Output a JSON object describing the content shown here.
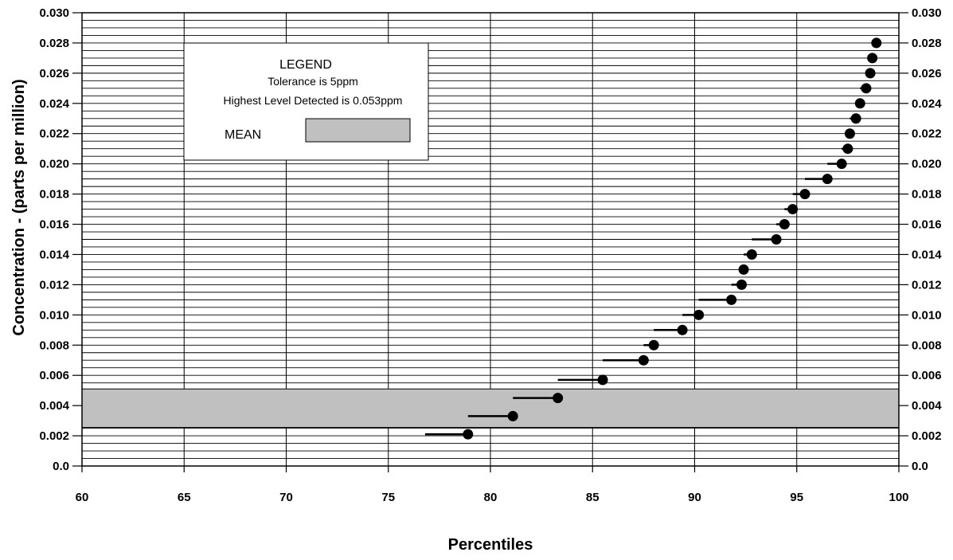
{
  "chart_data": {
    "type": "scatter",
    "title": "",
    "xlabel": "Percentiles",
    "ylabel": "Concentration - (parts per million)",
    "xlim": [
      60,
      100
    ],
    "ylim": [
      0,
      0.03
    ],
    "x_ticks": [
      60,
      65,
      70,
      75,
      80,
      85,
      90,
      95,
      100
    ],
    "x_tick_labels": [
      "60",
      "65",
      "70",
      "75",
      "80",
      "85",
      "90",
      "95",
      "100"
    ],
    "y_ticks": [
      0,
      0.002,
      0.004,
      0.006,
      0.008,
      0.01,
      0.012,
      0.014,
      0.016,
      0.018,
      0.02,
      0.022,
      0.024,
      0.026,
      0.028,
      0.03
    ],
    "y_tick_labels": [
      "0.0",
      "0.002",
      "0.004",
      "0.006",
      "0.008",
      "0.010",
      "0.012",
      "0.014",
      "0.016",
      "0.018",
      "0.020",
      "0.022",
      "0.024",
      "0.026",
      "0.028",
      "0.030"
    ],
    "y_minor_step": 0.0005,
    "grid": true,
    "mean_band": {
      "label": "MEAN",
      "y_from": 0.00255,
      "y_to": 0.0051,
      "color": "#c0c0c0"
    },
    "legend": {
      "placement": "top-left",
      "title": "LEGEND",
      "lines": [
        "Tolerance is 5ppm",
        "Highest Level Detected is 0.053ppm"
      ],
      "mean_label": "MEAN"
    },
    "points": [
      {
        "x": 78.9,
        "y": 0.0021,
        "x_from": 76.8
      },
      {
        "x": 81.1,
        "y": 0.0033,
        "x_from": 78.9
      },
      {
        "x": 83.3,
        "y": 0.0045,
        "x_from": 81.1
      },
      {
        "x": 85.5,
        "y": 0.0057,
        "x_from": 83.3
      },
      {
        "x": 87.5,
        "y": 0.007,
        "x_from": 85.5
      },
      {
        "x": 88.0,
        "y": 0.008,
        "x_from": 87.5
      },
      {
        "x": 89.4,
        "y": 0.009,
        "x_from": 88.0
      },
      {
        "x": 90.2,
        "y": 0.01,
        "x_from": 89.4
      },
      {
        "x": 91.8,
        "y": 0.011,
        "x_from": 90.2
      },
      {
        "x": 92.3,
        "y": 0.012,
        "x_from": 91.8
      },
      {
        "x": 92.4,
        "y": 0.013,
        "x_from": 92.3
      },
      {
        "x": 92.8,
        "y": 0.014,
        "x_from": 92.4
      },
      {
        "x": 94.0,
        "y": 0.015,
        "x_from": 92.8
      },
      {
        "x": 94.4,
        "y": 0.016,
        "x_from": 94.0
      },
      {
        "x": 94.8,
        "y": 0.017,
        "x_from": 94.4
      },
      {
        "x": 95.4,
        "y": 0.018,
        "x_from": 94.8
      },
      {
        "x": 96.5,
        "y": 0.019,
        "x_from": 95.4
      },
      {
        "x": 97.2,
        "y": 0.02,
        "x_from": 96.5
      },
      {
        "x": 97.5,
        "y": 0.021,
        "x_from": 97.2
      },
      {
        "x": 97.6,
        "y": 0.022,
        "x_from": 97.5
      },
      {
        "x": 97.9,
        "y": 0.023,
        "x_from": 97.6
      },
      {
        "x": 98.1,
        "y": 0.024,
        "x_from": 97.9
      },
      {
        "x": 98.4,
        "y": 0.025,
        "x_from": 98.1
      },
      {
        "x": 98.6,
        "y": 0.026,
        "x_from": 98.4
      },
      {
        "x": 98.7,
        "y": 0.027,
        "x_from": 98.6
      },
      {
        "x": 98.9,
        "y": 0.028,
        "x_from": 98.7
      }
    ]
  }
}
